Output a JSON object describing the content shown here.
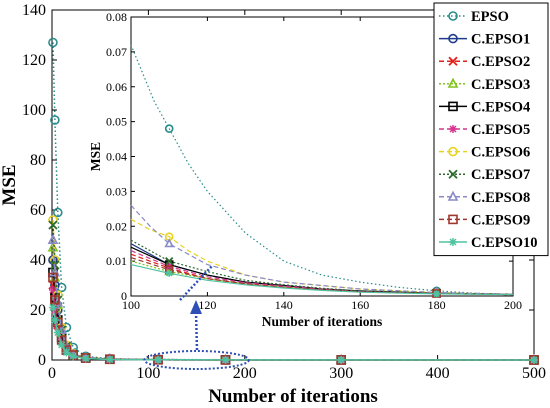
{
  "chart_data": {
    "type": "line",
    "main": {
      "xlabel": "Number of iterations",
      "ylabel": "MSE",
      "xlim": [
        0,
        500
      ],
      "ylim": [
        0,
        140
      ],
      "xticks": [
        "0",
        "100",
        "200",
        "300",
        "400",
        "500"
      ],
      "yticks": [
        "0",
        "20",
        "40",
        "60",
        "80",
        "100",
        "120",
        "140"
      ]
    },
    "inset": {
      "xlabel": "Number of iterations",
      "ylabel": "MSE",
      "xlim": [
        100,
        200
      ],
      "ylim": [
        0,
        0.08
      ],
      "xticks": [
        "100",
        "120",
        "140",
        "160",
        "180",
        "200"
      ],
      "yticks": [
        "0",
        "0.01",
        "0.02",
        "0.03",
        "0.04",
        "0.05",
        "0.06",
        "0.07",
        "0.08"
      ]
    },
    "series": [
      {
        "name": "EPSO",
        "color": "#2A8C8C",
        "dash": "1.5,2.5",
        "marker": "circle",
        "main_x": [
          1,
          3,
          6,
          10,
          15,
          22,
          35,
          60,
          110,
          180,
          300,
          500
        ],
        "main_y": [
          127,
          96,
          59,
          29,
          13,
          5,
          1.5,
          0.5,
          0.2,
          0.1,
          0.05,
          0.02
        ],
        "inset_x": [
          100,
          103,
          106,
          110,
          115,
          120,
          130,
          140,
          150,
          160,
          170,
          180,
          190,
          200
        ],
        "inset_y": [
          0.072,
          0.064,
          0.056,
          0.048,
          0.038,
          0.03,
          0.018,
          0.01,
          0.006,
          0.004,
          0.0025,
          0.0015,
          0.0008,
          0.0005
        ]
      },
      {
        "name": "C.EPSO1",
        "color": "#1F3C8C",
        "dash": "",
        "marker": "circle",
        "main_x": [
          1,
          3,
          6,
          10,
          15,
          22,
          35,
          60,
          110,
          180,
          300,
          500
        ],
        "main_y": [
          40,
          30,
          20,
          10,
          5,
          2,
          1,
          0.3,
          0.1,
          0.05,
          0.02,
          0.01
        ],
        "inset_x": [
          100,
          110,
          120,
          130,
          140,
          150,
          160,
          180,
          200
        ],
        "inset_y": [
          0.015,
          0.009,
          0.006,
          0.004,
          0.003,
          0.002,
          0.0015,
          0.0008,
          0.0005
        ]
      },
      {
        "name": "C.EPSO2",
        "color": "#E0201B",
        "dash": "5,3",
        "marker": "x",
        "main_x": [
          1,
          3,
          6,
          10,
          15,
          22,
          35,
          60,
          110,
          180,
          300,
          500
        ],
        "main_y": [
          30,
          22,
          14,
          8,
          4,
          2,
          0.8,
          0.3,
          0.1,
          0.05,
          0.02,
          0.01
        ],
        "inset_x": [
          100,
          110,
          120,
          130,
          140,
          150,
          160,
          180,
          200
        ],
        "inset_y": [
          0.012,
          0.008,
          0.005,
          0.0035,
          0.0025,
          0.0018,
          0.0012,
          0.0007,
          0.0004
        ]
      },
      {
        "name": "C.EPSO3",
        "color": "#7FC31C",
        "dash": "2,2",
        "marker": "triangle",
        "main_x": [
          1,
          3,
          6,
          10,
          15,
          22,
          35,
          60,
          110,
          180,
          300,
          500
        ],
        "main_y": [
          45,
          33,
          22,
          11,
          5,
          2,
          0.9,
          0.3,
          0.1,
          0.05,
          0.02,
          0.01
        ],
        "inset_x": [
          100,
          110,
          120,
          130,
          140,
          150,
          160,
          180,
          200
        ],
        "inset_y": [
          0.01,
          0.007,
          0.005,
          0.0035,
          0.0025,
          0.0018,
          0.0012,
          0.0007,
          0.0004
        ]
      },
      {
        "name": "C.EPSO4",
        "color": "#000000",
        "dash": "",
        "marker": "square",
        "main_x": [
          1,
          3,
          6,
          10,
          15,
          22,
          35,
          60,
          110,
          180,
          300,
          500
        ],
        "main_y": [
          35,
          25,
          16,
          9,
          4,
          2,
          0.8,
          0.3,
          0.1,
          0.05,
          0.02,
          0.01
        ],
        "inset_x": [
          100,
          110,
          120,
          130,
          140,
          150,
          160,
          180,
          200
        ],
        "inset_y": [
          0.014,
          0.009,
          0.006,
          0.004,
          0.003,
          0.002,
          0.0014,
          0.0008,
          0.0005
        ]
      },
      {
        "name": "C.EPSO5",
        "color": "#D4368E",
        "dash": "5,3",
        "marker": "asterisk",
        "main_x": [
          1,
          3,
          6,
          10,
          15,
          22,
          35,
          60,
          110,
          180,
          300,
          500
        ],
        "main_y": [
          28,
          20,
          13,
          7,
          3.5,
          1.8,
          0.7,
          0.3,
          0.1,
          0.05,
          0.02,
          0.01
        ],
        "inset_x": [
          100,
          110,
          120,
          130,
          140,
          150,
          160,
          180,
          200
        ],
        "inset_y": [
          0.013,
          0.0085,
          0.0055,
          0.0038,
          0.0028,
          0.002,
          0.0013,
          0.0007,
          0.0004
        ]
      },
      {
        "name": "C.EPSO6",
        "color": "#E8D21F",
        "dash": "5,3",
        "marker": "circle",
        "main_x": [
          1,
          3,
          6,
          10,
          15,
          22,
          35,
          60,
          110,
          180,
          300,
          500
        ],
        "main_y": [
          56,
          40,
          26,
          13,
          6,
          2.5,
          1,
          0.4,
          0.15,
          0.06,
          0.03,
          0.01
        ],
        "inset_x": [
          100,
          105,
          110,
          115,
          120,
          130,
          140,
          150,
          160,
          180,
          200
        ],
        "inset_y": [
          0.022,
          0.019,
          0.017,
          0.013,
          0.01,
          0.006,
          0.004,
          0.003,
          0.002,
          0.001,
          0.0005
        ]
      },
      {
        "name": "C.EPSO7",
        "color": "#2E6B2E",
        "dash": "2,2",
        "marker": "x",
        "main_x": [
          1,
          3,
          6,
          10,
          15,
          22,
          35,
          60,
          110,
          180,
          300,
          500
        ],
        "main_y": [
          54,
          38,
          24,
          12,
          5.5,
          2.3,
          1,
          0.4,
          0.15,
          0.06,
          0.03,
          0.01
        ],
        "inset_x": [
          100,
          110,
          120,
          130,
          140,
          150,
          160,
          180,
          200
        ],
        "inset_y": [
          0.016,
          0.01,
          0.007,
          0.0045,
          0.0032,
          0.0022,
          0.0015,
          0.0008,
          0.0005
        ]
      },
      {
        "name": "C.EPSO8",
        "color": "#8A8AC8",
        "dash": "5,3",
        "marker": "triangle",
        "main_x": [
          1,
          3,
          6,
          10,
          15,
          22,
          35,
          60,
          110,
          180,
          300,
          500
        ],
        "main_y": [
          48,
          35,
          23,
          12,
          5.5,
          2.3,
          1,
          0.4,
          0.15,
          0.06,
          0.03,
          0.01
        ],
        "inset_x": [
          100,
          105,
          110,
          115,
          120,
          130,
          140,
          150,
          160,
          180,
          200
        ],
        "inset_y": [
          0.026,
          0.02,
          0.015,
          0.012,
          0.009,
          0.006,
          0.004,
          0.003,
          0.002,
          0.001,
          0.0005
        ]
      },
      {
        "name": "C.EPSO9",
        "color": "#A0362E",
        "dash": "5,3",
        "marker": "square",
        "main_x": [
          1,
          3,
          6,
          10,
          15,
          22,
          35,
          60,
          110,
          180,
          300,
          500
        ],
        "main_y": [
          33,
          24,
          15,
          8,
          4,
          2,
          0.8,
          0.3,
          0.1,
          0.05,
          0.02,
          0.01
        ],
        "inset_x": [
          100,
          110,
          120,
          130,
          140,
          150,
          160,
          180,
          200
        ],
        "inset_y": [
          0.011,
          0.0075,
          0.005,
          0.0035,
          0.0025,
          0.0018,
          0.0012,
          0.0007,
          0.0004
        ]
      },
      {
        "name": "C.EPSO10",
        "color": "#4FC3A0",
        "dash": "",
        "marker": "asterisk",
        "main_x": [
          1,
          3,
          6,
          10,
          15,
          22,
          35,
          60,
          110,
          180,
          300,
          500
        ],
        "main_y": [
          21,
          16,
          11,
          6,
          3,
          1.5,
          0.6,
          0.2,
          0.1,
          0.05,
          0.02,
          0.01
        ],
        "inset_x": [
          100,
          110,
          120,
          130,
          140,
          150,
          160,
          180,
          200
        ],
        "inset_y": [
          0.009,
          0.0065,
          0.0045,
          0.0032,
          0.0023,
          0.0016,
          0.0011,
          0.0006,
          0.0004
        ]
      }
    ],
    "legend_position": "top-right",
    "grid": false,
    "annotation": "dotted ellipse around x 100-200 on main axis with arrow pointing to inset"
  }
}
